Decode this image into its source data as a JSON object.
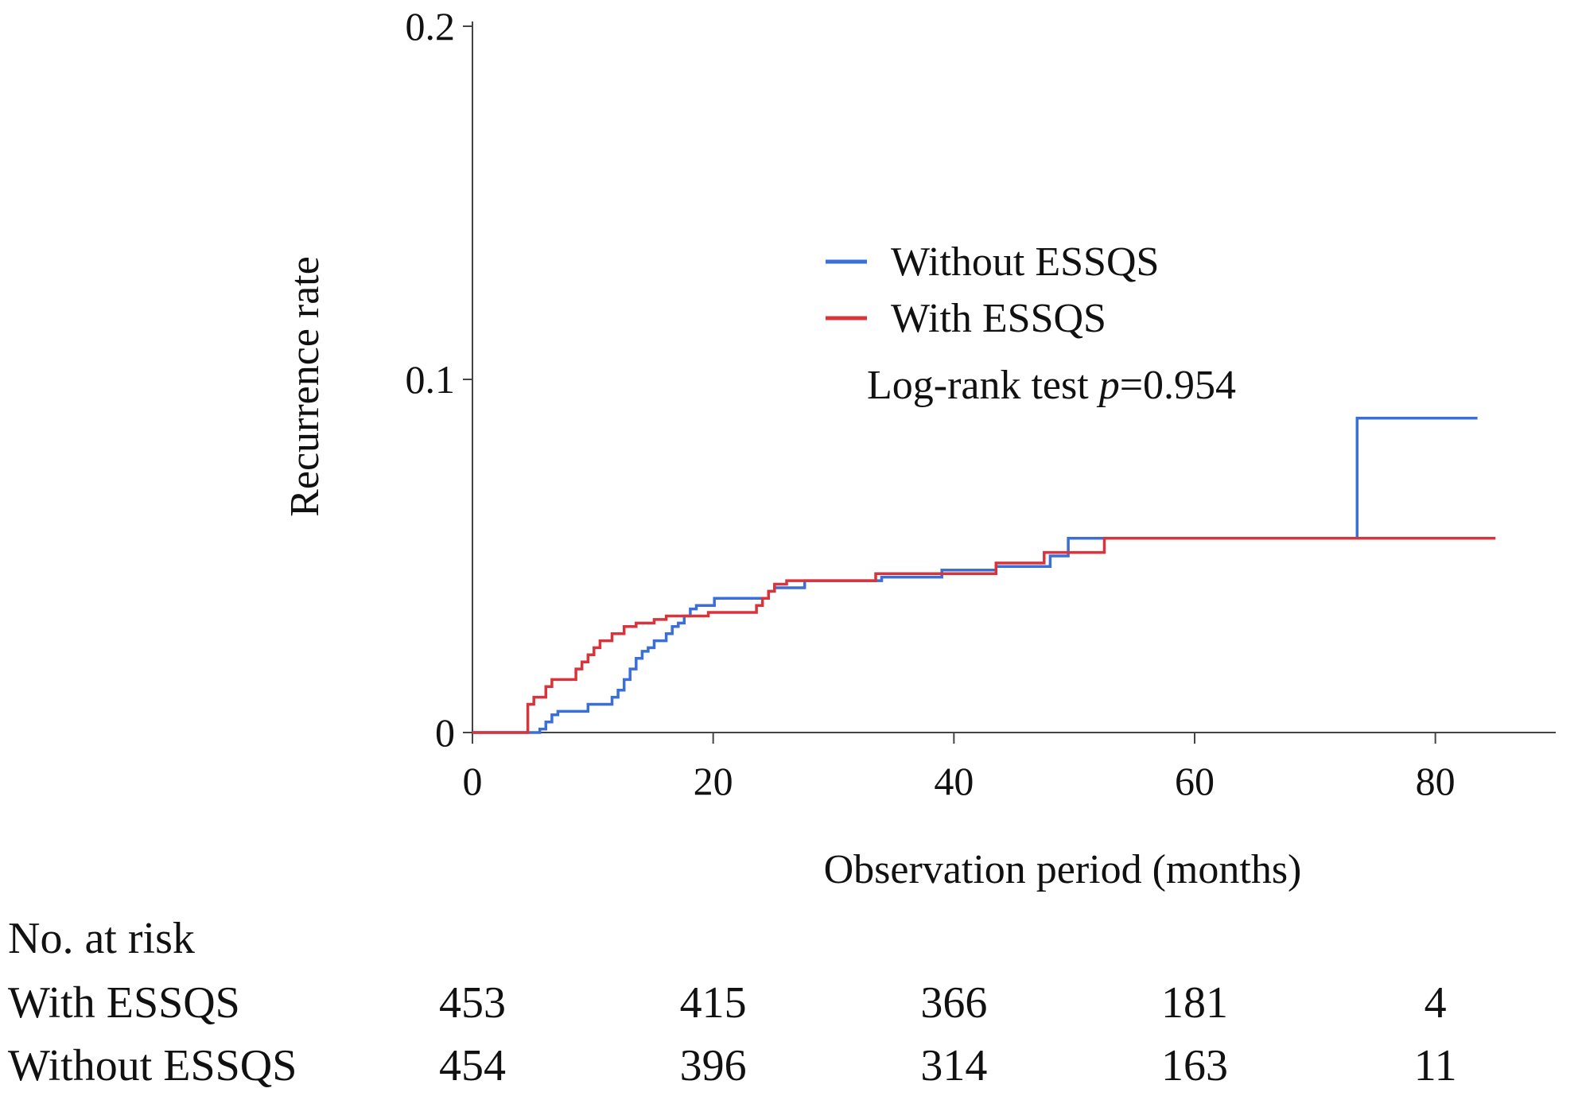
{
  "chart_data": {
    "type": "line",
    "step": true,
    "xlabel": "Observation period (months)",
    "ylabel": "Recurrence rate",
    "xlim": [
      0,
      90
    ],
    "ylim": [
      0,
      0.2
    ],
    "x_ticks": [
      0,
      20,
      40,
      60,
      80
    ],
    "x_tick_labels": [
      "0",
      "20",
      "40",
      "60",
      "80"
    ],
    "y_ticks": [
      0,
      0.1,
      0.2
    ],
    "y_tick_labels": [
      "0",
      "0.1",
      "0.2"
    ],
    "legend_position": "upper-center",
    "annotation_prefix": "Log-rank test ",
    "annotation_p": "p",
    "annotation_value": "=0.954",
    "series": [
      {
        "name": "Without ESSQS",
        "color": "#3a6fd8",
        "x": [
          0,
          5.6,
          6.1,
          6.6,
          7.1,
          9.6,
          11.6,
          12.1,
          12.6,
          13.1,
          13.6,
          14.1,
          14.6,
          15.1,
          15.6,
          16.1,
          16.6,
          17.1,
          17.6,
          18.1,
          18.6,
          20.1,
          22.6,
          24.6,
          25.1,
          27.6,
          34.0,
          39.0,
          41.5,
          43.5,
          48.0,
          49.5,
          73.5,
          83.5
        ],
        "y": [
          0,
          0.001,
          0.003,
          0.005,
          0.006,
          0.008,
          0.01,
          0.012,
          0.015,
          0.018,
          0.021,
          0.023,
          0.024,
          0.026,
          0.026,
          0.028,
          0.03,
          0.031,
          0.033,
          0.035,
          0.036,
          0.038,
          0.038,
          0.04,
          0.041,
          0.043,
          0.044,
          0.046,
          0.046,
          0.047,
          0.05,
          0.055,
          0.089,
          0.089
        ]
      },
      {
        "name": "With ESSQS",
        "color": "#d8343c",
        "x": [
          0,
          4.6,
          5.1,
          6.1,
          6.6,
          8.6,
          9.1,
          9.6,
          10.1,
          10.6,
          11.6,
          12.6,
          13.6,
          15.1,
          16.1,
          18.1,
          19.6,
          23.6,
          24.1,
          24.6,
          25.1,
          26.1,
          28.1,
          33.5,
          36.0,
          43.5,
          47.5,
          52.5,
          85.0
        ],
        "y": [
          0,
          0.008,
          0.01,
          0.013,
          0.015,
          0.018,
          0.02,
          0.022,
          0.024,
          0.026,
          0.028,
          0.03,
          0.031,
          0.032,
          0.033,
          0.033,
          0.034,
          0.036,
          0.038,
          0.04,
          0.042,
          0.043,
          0.043,
          0.045,
          0.045,
          0.048,
          0.051,
          0.055,
          0.055
        ]
      }
    ]
  },
  "risk_table": {
    "title": "No. at risk",
    "time_points": [
      0,
      20,
      40,
      60,
      80
    ],
    "rows": [
      {
        "label": "With ESSQS",
        "values": [
          "453",
          "415",
          "366",
          "181",
          "4"
        ]
      },
      {
        "label": "Without ESSQS",
        "values": [
          "454",
          "396",
          "314",
          "163",
          "11"
        ]
      }
    ]
  }
}
